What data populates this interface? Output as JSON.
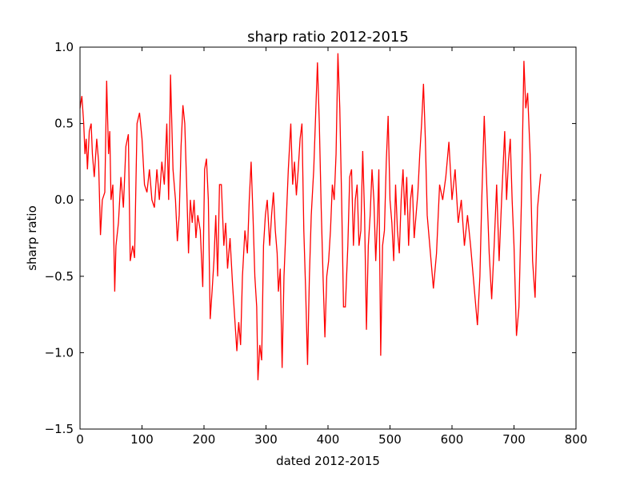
{
  "chart_data": {
    "type": "line",
    "title": "sharp ratio 2012-2015",
    "x_label": "dated 2012-2015",
    "y_label": "sharp ratio",
    "xlim": [
      0,
      800
    ],
    "xticks": [
      0,
      100,
      200,
      300,
      400,
      500,
      600,
      700,
      800
    ],
    "ylim": [
      -1.5,
      1.0
    ],
    "yticks": [
      {
        "value": -1.5,
        "label": "−1.5"
      },
      {
        "value": -1.0,
        "label": "−1.0"
      },
      {
        "value": -0.5,
        "label": "−0.5"
      },
      {
        "value": 0.0,
        "label": "0.0"
      },
      {
        "value": 0.5,
        "label": "0.5"
      },
      {
        "value": 1.0,
        "label": "1.0"
      }
    ],
    "grid": false,
    "series": [
      {
        "color": "#ff0000",
        "x": [
          0,
          3,
          6,
          8,
          10,
          12,
          15,
          18,
          20,
          23,
          27,
          30,
          33,
          36,
          40,
          43,
          46,
          48,
          50,
          53,
          56,
          58,
          62,
          66,
          70,
          74,
          78,
          81,
          85,
          88,
          92,
          96,
          100,
          104,
          108,
          112,
          116,
          120,
          124,
          128,
          132,
          136,
          140,
          143,
          146,
          150,
          154,
          157,
          160,
          163,
          166,
          169,
          172,
          175,
          178,
          181,
          184,
          187,
          190,
          194,
          198,
          201,
          204,
          207,
          210,
          213,
          216,
          219,
          222,
          225,
          228,
          232,
          235,
          238,
          242,
          246,
          250,
          253,
          256,
          259,
          262,
          266,
          270,
          273,
          276,
          279,
          282,
          285,
          287,
          290,
          293,
          296,
          299,
          302,
          306,
          309,
          312,
          315,
          318,
          320,
          323,
          326,
          329,
          332,
          336,
          340,
          343,
          346,
          349,
          352,
          355,
          358,
          361,
          364,
          367,
          370,
          373,
          377,
          380,
          383,
          386,
          389,
          392,
          395,
          398,
          401,
          404,
          407,
          410,
          413,
          416,
          419,
          422,
          425,
          428,
          432,
          435,
          438,
          441,
          444,
          447,
          450,
          453,
          456,
          459,
          462,
          465,
          468,
          471,
          474,
          477,
          480,
          482,
          485,
          488,
          491,
          494,
          497,
          500,
          503,
          506,
          509,
          512,
          515,
          518,
          521,
          524,
          527,
          530,
          533,
          536,
          539,
          542,
          545,
          548,
          551,
          554,
          557,
          560,
          570,
          575,
          580,
          585,
          590,
          595,
          600,
          605,
          610,
          615,
          620,
          625,
          630,
          641,
          645,
          648,
          652,
          656,
          660,
          664,
          668,
          672,
          676,
          680,
          685,
          688,
          691,
          694,
          697,
          700,
          704,
          708,
          712,
          716,
          719,
          722,
          726,
          730,
          734,
          738,
          743
        ],
        "values": [
          0.6,
          0.68,
          0.5,
          0.3,
          0.4,
          0.2,
          0.45,
          0.5,
          0.3,
          0.15,
          0.4,
          0.25,
          -0.23,
          0.0,
          0.05,
          0.78,
          0.3,
          0.45,
          0.0,
          0.1,
          -0.6,
          -0.3,
          -0.15,
          0.15,
          -0.05,
          0.35,
          0.43,
          -0.4,
          -0.3,
          -0.38,
          0.5,
          0.57,
          0.4,
          0.1,
          0.05,
          0.2,
          0.0,
          -0.05,
          0.2,
          0.0,
          0.25,
          0.1,
          0.5,
          0.0,
          0.82,
          0.2,
          0.0,
          -0.27,
          -0.1,
          0.35,
          0.62,
          0.5,
          0.1,
          -0.35,
          0.0,
          -0.15,
          0.0,
          -0.25,
          -0.1,
          -0.2,
          -0.57,
          0.2,
          0.27,
          0.0,
          -0.78,
          -0.6,
          -0.4,
          -0.1,
          -0.5,
          0.1,
          0.1,
          -0.3,
          -0.15,
          -0.45,
          -0.25,
          -0.55,
          -0.8,
          -0.99,
          -0.8,
          -0.95,
          -0.5,
          -0.2,
          -0.35,
          0.0,
          0.25,
          -0.1,
          -0.5,
          -0.7,
          -1.18,
          -0.95,
          -1.05,
          -0.3,
          -0.1,
          0.0,
          -0.3,
          -0.1,
          0.05,
          -0.2,
          -0.35,
          -0.6,
          -0.45,
          -1.1,
          -0.5,
          -0.2,
          0.2,
          0.5,
          0.1,
          0.25,
          0.03,
          0.2,
          0.4,
          0.5,
          -0.2,
          -0.6,
          -1.08,
          -0.5,
          -0.1,
          0.2,
          0.55,
          0.9,
          0.5,
          -0.05,
          -0.5,
          -0.9,
          -0.5,
          -0.4,
          -0.2,
          0.1,
          0.0,
          0.3,
          0.96,
          0.6,
          0.0,
          -0.7,
          -0.7,
          -0.3,
          0.15,
          0.2,
          -0.3,
          0.0,
          0.1,
          -0.3,
          -0.2,
          0.32,
          -0.1,
          -0.85,
          -0.3,
          -0.1,
          0.2,
          0.0,
          -0.4,
          -0.1,
          0.2,
          -1.02,
          -0.3,
          -0.2,
          0.25,
          0.55,
          0.0,
          -0.15,
          -0.4,
          0.1,
          -0.2,
          -0.35,
          0.0,
          0.2,
          -0.1,
          0.15,
          -0.3,
          0.0,
          0.1,
          -0.25,
          -0.1,
          0.05,
          0.3,
          0.5,
          0.76,
          0.4,
          -0.1,
          -0.58,
          -0.35,
          0.1,
          0.0,
          0.15,
          0.38,
          0.0,
          0.2,
          -0.15,
          0.0,
          -0.3,
          -0.1,
          -0.3,
          -0.82,
          -0.5,
          0.0,
          0.55,
          0.1,
          -0.35,
          -0.65,
          -0.3,
          0.1,
          -0.4,
          0.0,
          0.45,
          0.0,
          0.25,
          0.4,
          0.0,
          -0.3,
          -0.89,
          -0.7,
          0.0,
          0.91,
          0.6,
          0.7,
          0.3,
          -0.4,
          -0.64,
          -0.05,
          0.17
        ]
      }
    ]
  }
}
